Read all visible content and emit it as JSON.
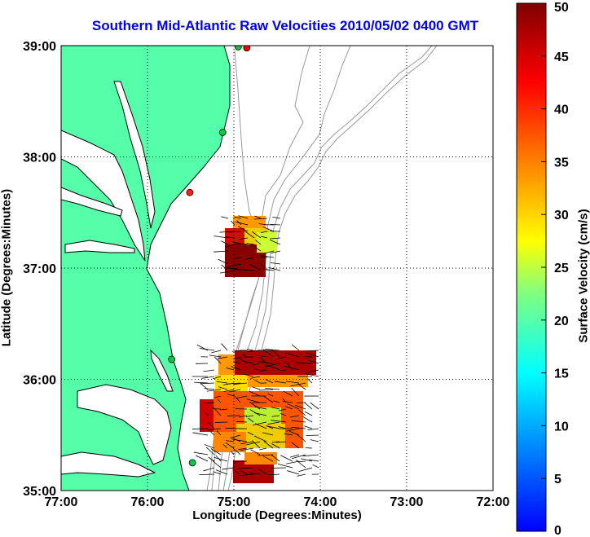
{
  "title": "Southern Mid-Atlantic Raw Velocities 2010/05/02 0400 GMT",
  "xlabel": "Longitude (Degrees:Minutes)",
  "ylabel": "Latitude (Degrees:Minutes)",
  "colorbar": {
    "label": "Surface Velocity (cm/s)",
    "ticks": [
      "0",
      "5",
      "10",
      "15",
      "20",
      "25",
      "30",
      "35",
      "40",
      "45",
      "50"
    ],
    "range": [
      0,
      50
    ]
  },
  "map": {
    "lon_range": [
      -77,
      -72
    ],
    "lat_range": [
      35,
      39
    ],
    "x_ticks": [
      {
        "value": -77,
        "label": "77:00"
      },
      {
        "value": -76,
        "label": "76:00"
      },
      {
        "value": -75,
        "label": "75:00"
      },
      {
        "value": -74,
        "label": "74:00"
      },
      {
        "value": -73,
        "label": "73:00"
      },
      {
        "value": -72,
        "label": "72:00"
      }
    ],
    "y_ticks": [
      {
        "value": 39,
        "label": "39:00"
      },
      {
        "value": 38,
        "label": "38:00"
      },
      {
        "value": 37,
        "label": "37:00"
      },
      {
        "value": 36,
        "label": "36:00"
      },
      {
        "value": 35,
        "label": "35:00"
      }
    ],
    "grid": "dotted",
    "land_color": "#55ffaa",
    "coast_color": "#000000",
    "bathymetry_color": "#999999",
    "stations": [
      {
        "lon": -74.85,
        "lat": 38.98,
        "color": "#ff0000"
      },
      {
        "lon": -74.95,
        "lat": 38.99,
        "color": "#00cc44"
      },
      {
        "lon": -75.13,
        "lat": 38.22,
        "color": "#00cc44"
      },
      {
        "lon": -75.51,
        "lat": 37.68,
        "color": "#ff2200"
      },
      {
        "lon": -75.72,
        "lat": 36.18,
        "color": "#00cc44"
      },
      {
        "lon": -75.48,
        "lat": 35.25,
        "color": "#00cc44"
      }
    ]
  }
}
